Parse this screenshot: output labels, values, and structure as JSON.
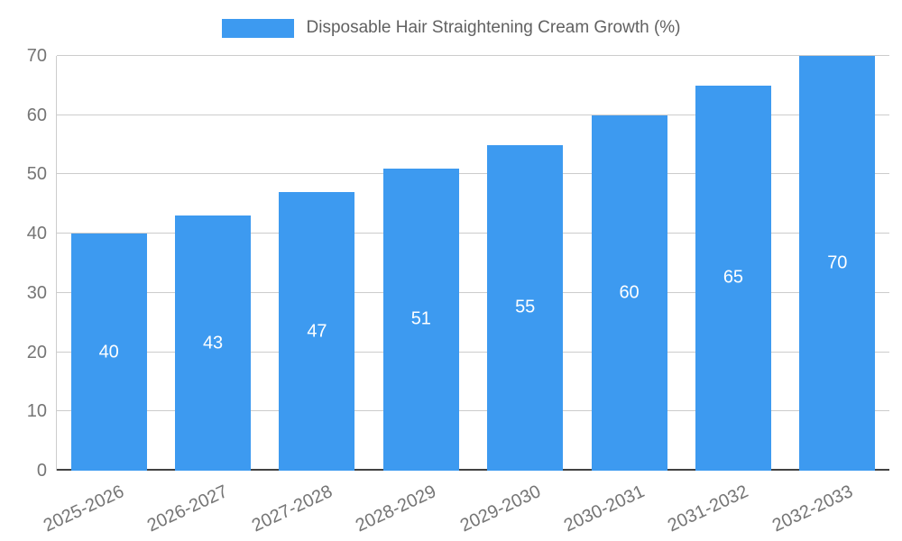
{
  "chart_data": {
    "type": "bar",
    "title": "Disposable Hair Straightening Cream Growth (%)",
    "categories": [
      "2025-2026",
      "2026-2027",
      "2027-2028",
      "2028-2029",
      "2029-2030",
      "2030-2031",
      "2031-2032",
      "2032-2033"
    ],
    "values": [
      40,
      43,
      47,
      51,
      55,
      60,
      65,
      70
    ],
    "xlabel": "",
    "ylabel": "",
    "ylim": [
      0,
      70
    ],
    "yticks": [
      0,
      10,
      20,
      30,
      40,
      50,
      60,
      70
    ],
    "grid": true,
    "legend_position": "top",
    "bar_labels_inside": true
  },
  "colors": {
    "bar": "#3d9af0",
    "bar_label": "#ffffff",
    "title_text": "#616161",
    "axis_text": "#757575",
    "gridline": "#cccccc",
    "baseline": "#424242"
  }
}
